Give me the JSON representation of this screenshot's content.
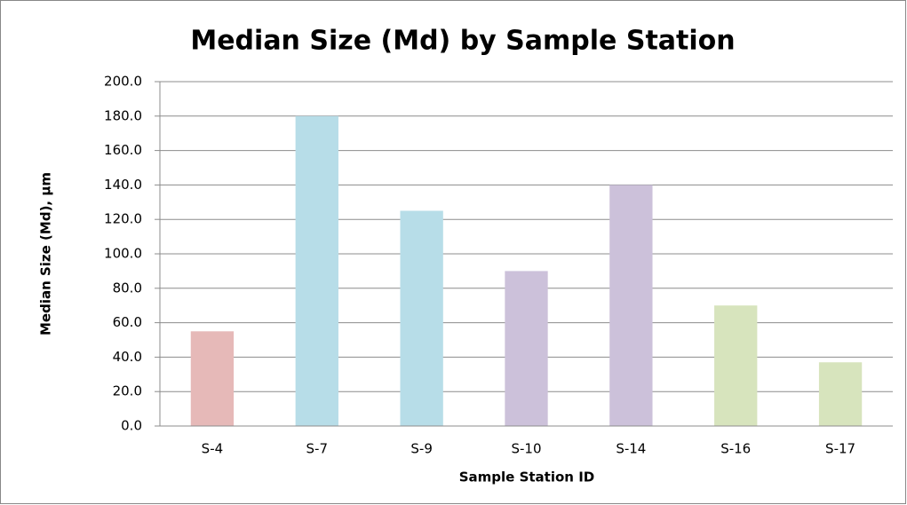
{
  "chart_data": {
    "type": "bar",
    "title": "Median Size (Md) by Sample Station",
    "x_label": "Sample Station ID",
    "y_label": "Median Size (Md), µm",
    "categories": [
      "S-4",
      "S-7",
      "S-9",
      "S-10",
      "S-14",
      "S-16",
      "S-17"
    ],
    "values": [
      55,
      180,
      125,
      90,
      140,
      70,
      37
    ],
    "colors": [
      "#e6b9b8",
      "#b7dde8",
      "#b7dde8",
      "#ccc1da",
      "#ccc1da",
      "#d7e4bd",
      "#d7e4bd"
    ],
    "ylim": [
      0,
      200
    ],
    "yticks": [
      {
        "value": 0,
        "label": "0.0"
      },
      {
        "value": 20,
        "label": "20.0"
      },
      {
        "value": 40,
        "label": "40.0"
      },
      {
        "value": 60,
        "label": "60.0"
      },
      {
        "value": 80,
        "label": "80.0"
      },
      {
        "value": 100,
        "label": "100.0"
      },
      {
        "value": 120,
        "label": "120.0"
      },
      {
        "value": 140,
        "label": "140.0"
      },
      {
        "value": 160,
        "label": "160.0"
      },
      {
        "value": 180,
        "label": "180.0"
      },
      {
        "value": 200,
        "label": "200.0"
      }
    ],
    "grid": true
  }
}
